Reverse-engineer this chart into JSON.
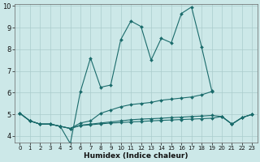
{
  "xlabel": "Humidex (Indice chaleur)",
  "bg_color": "#cce8e8",
  "grid_color": "#aacccc",
  "line_color": "#1a6b6b",
  "xlim": [
    -0.5,
    23.5
  ],
  "ylim": [
    3.7,
    10.1
  ],
  "xticks": [
    0,
    1,
    2,
    3,
    4,
    5,
    6,
    7,
    8,
    9,
    10,
    11,
    12,
    13,
    14,
    15,
    16,
    17,
    18,
    19,
    20,
    21,
    22,
    23
  ],
  "yticks": [
    4,
    5,
    6,
    7,
    8,
    9,
    10
  ],
  "series": [
    [
      5.05,
      4.7,
      4.55,
      4.55,
      4.45,
      3.65,
      6.05,
      7.6,
      6.25,
      6.35,
      8.45,
      9.3,
      9.05,
      7.5,
      8.5,
      8.3,
      9.65,
      9.95,
      8.1,
      6.1,
      null,
      null,
      null,
      null
    ],
    [
      null,
      null,
      null,
      null,
      null,
      null,
      null,
      null,
      null,
      null,
      null,
      null,
      null,
      null,
      null,
      null,
      null,
      null,
      null,
      null,
      4.9,
      4.55,
      4.85,
      5.0
    ],
    [
      5.05,
      4.7,
      4.55,
      4.55,
      4.45,
      4.35,
      4.6,
      4.7,
      5.05,
      5.2,
      5.35,
      5.45,
      5.5,
      5.55,
      5.65,
      5.7,
      5.75,
      5.8,
      5.9,
      6.05,
      null,
      null,
      null,
      null
    ],
    [
      5.05,
      4.7,
      4.55,
      4.55,
      4.45,
      4.35,
      4.5,
      4.55,
      4.6,
      4.65,
      4.7,
      4.75,
      4.78,
      4.8,
      4.82,
      4.85,
      4.87,
      4.9,
      4.92,
      4.95,
      4.9,
      4.55,
      4.85,
      5.0
    ],
    [
      5.05,
      4.7,
      4.55,
      4.55,
      4.45,
      4.35,
      4.48,
      4.52,
      4.56,
      4.6,
      4.62,
      4.65,
      4.67,
      4.7,
      4.72,
      4.74,
      4.76,
      4.78,
      4.8,
      4.82,
      4.9,
      4.55,
      4.85,
      5.0
    ]
  ]
}
